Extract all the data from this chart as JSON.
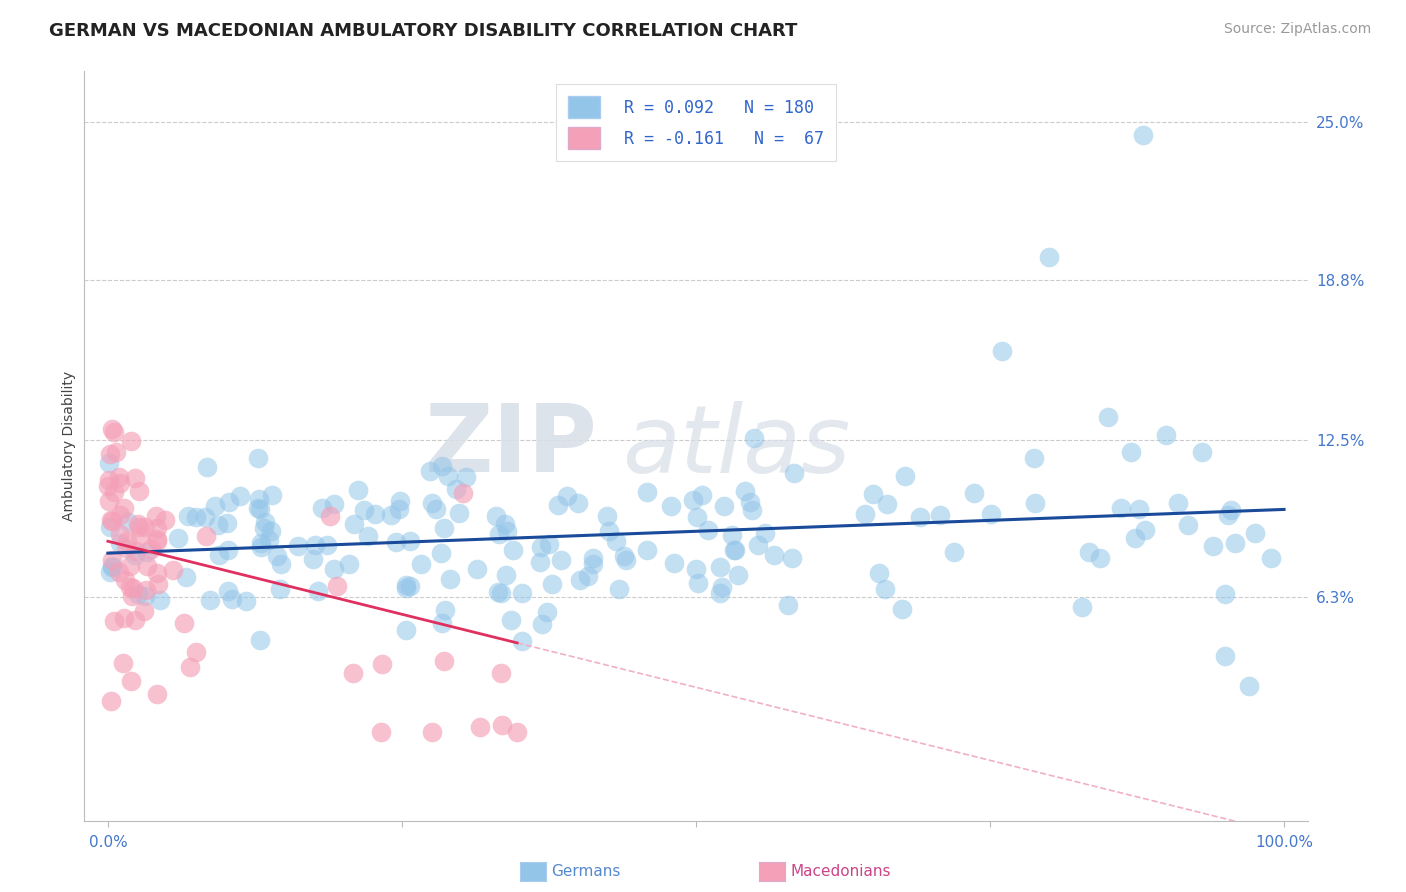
{
  "title": "GERMAN VS MACEDONIAN AMBULATORY DISABILITY CORRELATION CHART",
  "source": "Source: ZipAtlas.com",
  "xlabel": "",
  "ylabel": "Ambulatory Disability",
  "x_min": 0.0,
  "x_max": 1.0,
  "y_min": -0.025,
  "y_max": 0.27,
  "y_ticks": [
    0.063,
    0.125,
    0.188,
    0.25
  ],
  "y_tick_labels": [
    "6.3%",
    "12.5%",
    "18.8%",
    "25.0%"
  ],
  "x_ticks": [
    0.0,
    0.25,
    0.5,
    0.75,
    1.0
  ],
  "x_tick_labels": [
    "0.0%",
    "",
    "",
    "",
    "100.0%"
  ],
  "german_R": 0.092,
  "german_N": 180,
  "macedonian_R": -0.161,
  "macedonian_N": 67,
  "german_color": "#92c5e8",
  "macedonian_color": "#f4a0b8",
  "german_line_color": "#1a4a9a",
  "macedonian_line_color": "#e03060",
  "macedonian_dash_color": "#f0b0c8",
  "background_color": "#ffffff",
  "watermark_text1": "ZIP",
  "watermark_text2": "atlas",
  "title_fontsize": 13,
  "axis_label_fontsize": 10,
  "tick_fontsize": 11,
  "source_fontsize": 10
}
